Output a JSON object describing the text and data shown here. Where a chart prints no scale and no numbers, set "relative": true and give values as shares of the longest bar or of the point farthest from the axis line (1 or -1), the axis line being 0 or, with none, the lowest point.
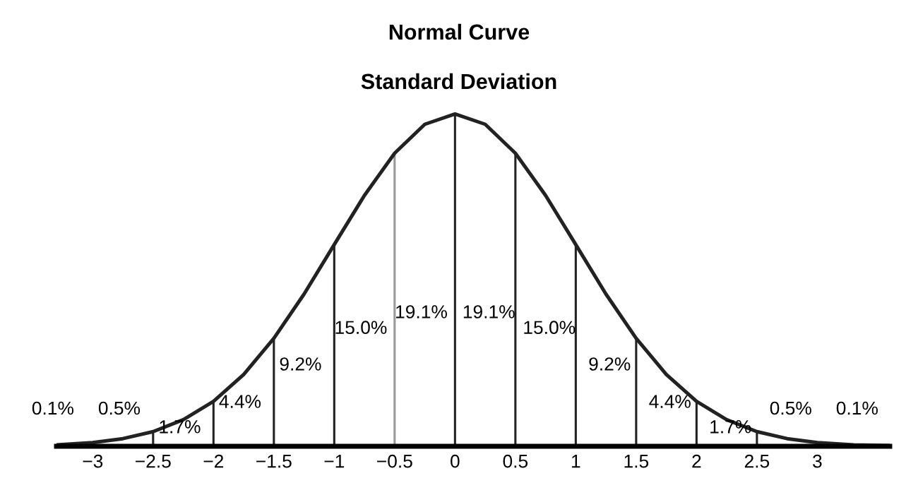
{
  "chart_data": {
    "type": "line",
    "title": "Normal Curve",
    "subtitle": "Standard Deviation",
    "relative": true,
    "xlim": [
      -3.3,
      3.6
    ],
    "xticks": [
      {
        "value": -3,
        "label": "−3"
      },
      {
        "value": -2.5,
        "label": "−2.5"
      },
      {
        "value": -2,
        "label": "−2"
      },
      {
        "value": -1.5,
        "label": "−1.5"
      },
      {
        "value": -1,
        "label": "−1"
      },
      {
        "value": -0.5,
        "label": "−0.5"
      },
      0,
      0.5,
      1,
      1.5,
      2,
      2.5,
      3
    ],
    "tick_labels": "x",
    "grid": false,
    "legend": false,
    "marker": "none",
    "line_style": "solid",
    "series": [
      {
        "color": "#222222",
        "x": [
          -3.3,
          -3,
          -2.75,
          -2.5,
          -2.25,
          -2,
          -1.75,
          -1.5,
          -1.25,
          -1,
          -0.75,
          -0.5,
          -0.25,
          0,
          0.25,
          0.5,
          0.75,
          1,
          1.25,
          1.5,
          1.75,
          2,
          2.25,
          2.5,
          2.75,
          3,
          3.3,
          3.6
        ],
        "values": [
          0.004,
          0.011,
          0.023,
          0.044,
          0.08,
          0.135,
          0.216,
          0.325,
          0.458,
          0.607,
          0.755,
          0.882,
          0.969,
          1,
          0.969,
          0.882,
          0.755,
          0.607,
          0.458,
          0.325,
          0.216,
          0.135,
          0.08,
          0.044,
          0.023,
          0.011,
          0.004,
          0.002
        ]
      },
      {
        "type": "bar",
        "x": [
          -2.5,
          -2,
          -1.5,
          -1,
          -0.5,
          0,
          0.5,
          1,
          1.5,
          2,
          2.5
        ],
        "values": [
          0.044,
          0.135,
          0.325,
          0.607,
          0.882,
          1,
          0.882,
          0.607,
          0.325,
          0.135,
          0.044
        ],
        "colors": [
          "#222222",
          "#222222",
          "#222222",
          "#222222",
          "#999999",
          "#222222",
          "#222222",
          "#222222",
          "#222222",
          "#222222",
          "#222222"
        ]
      }
    ],
    "annotations": [
      "0.1%",
      "0.5%",
      "1.7%",
      "4.4%",
      "9.2%",
      "15.0%",
      "19.1%",
      "19.1%",
      "15.0%",
      "9.2%",
      "4.4%",
      "1.7%",
      "0.5%",
      "0.1%"
    ]
  }
}
